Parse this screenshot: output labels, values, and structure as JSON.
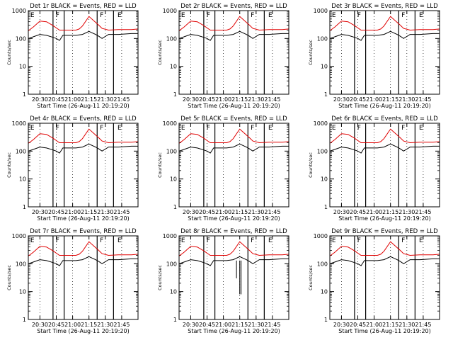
{
  "chart_data": [
    {
      "type": "line",
      "title": "Det 1r  BLACK = Events, RED = LLD",
      "xlabel": "Start Time (26-Aug-11 20:19:20)",
      "ylabel": "Counts/sec",
      "yscale": "log",
      "ylim": [
        1,
        1000
      ],
      "xlim": [
        20.3222,
        22.0
      ],
      "x_ticks": [
        "20:30",
        "20:45",
        "21:00",
        "21:15",
        "21:30",
        "21:45"
      ],
      "y_ticks": [
        "1",
        "10",
        "100",
        "1000"
      ],
      "markers": [
        "E",
        "F",
        "F",
        "E"
      ],
      "x": [
        20.3222,
        20.4,
        20.5,
        20.6,
        20.7,
        20.75,
        20.8,
        20.85,
        20.95,
        21.05,
        21.1,
        21.15,
        21.25,
        21.35,
        21.4,
        21.45,
        21.55,
        21.7,
        21.9,
        22.0
      ],
      "series": [
        {
          "name": "Events",
          "color": "#000000",
          "values": [
            100,
            115,
            140,
            130,
            110,
            100,
            85,
            130,
            130,
            130,
            135,
            140,
            180,
            140,
            120,
            100,
            140,
            140,
            150,
            150
          ]
        },
        {
          "name": "LLD",
          "color": "#e00000",
          "values": [
            190,
            260,
            420,
            400,
            290,
            240,
            200,
            200,
            200,
            200,
            220,
            280,
            620,
            380,
            300,
            230,
            200,
            210,
            210,
            220
          ]
        }
      ],
      "vlines": [
        20.7,
        20.87,
        21.375,
        21.625
      ]
    },
    {
      "type": "line",
      "title": "Det 2r  BLACK = Events, RED = LLD",
      "xlabel": "Start Time (26-Aug-11 20:19:20)",
      "ylabel": "Counts/sec",
      "yscale": "log",
      "ylim": [
        1,
        1000
      ],
      "xlim": [
        20.3222,
        22.0
      ],
      "x_ticks": [
        "20:30",
        "20:45",
        "21:00",
        "21:15",
        "21:30",
        "21:45"
      ],
      "y_ticks": [
        "1",
        "10",
        "100",
        "1000"
      ],
      "markers": [
        "E",
        "F",
        "F",
        "E"
      ],
      "x": [
        20.3222,
        20.4,
        20.5,
        20.6,
        20.7,
        20.75,
        20.8,
        20.85,
        20.95,
        21.05,
        21.1,
        21.15,
        21.25,
        21.35,
        21.4,
        21.45,
        21.55,
        21.7,
        21.9,
        22.0
      ],
      "series": [
        {
          "name": "Events",
          "color": "#000000",
          "values": [
            100,
            115,
            140,
            130,
            110,
            100,
            85,
            130,
            130,
            130,
            135,
            140,
            180,
            140,
            120,
            100,
            140,
            140,
            150,
            150
          ]
        },
        {
          "name": "LLD",
          "color": "#e00000",
          "values": [
            190,
            260,
            420,
            400,
            290,
            240,
            200,
            200,
            200,
            200,
            220,
            280,
            620,
            380,
            300,
            230,
            200,
            210,
            210,
            220
          ]
        }
      ],
      "vlines": [
        20.7,
        20.87,
        21.375,
        21.625
      ]
    },
    {
      "type": "line",
      "title": "Det 3r  BLACK = Events, RED = LLD",
      "xlabel": "Start Time (26-Aug-11 20:19:20)",
      "ylabel": "Counts/sec",
      "yscale": "log",
      "ylim": [
        1,
        1000
      ],
      "xlim": [
        20.3222,
        22.0
      ],
      "x_ticks": [
        "20:30",
        "20:45",
        "21:00",
        "21:15",
        "21:30",
        "21:45"
      ],
      "y_ticks": [
        "1",
        "10",
        "100",
        "1000"
      ],
      "markers": [
        "E",
        "F",
        "F",
        "E"
      ],
      "x": [
        20.3222,
        20.4,
        20.5,
        20.6,
        20.7,
        20.75,
        20.8,
        20.85,
        20.95,
        21.05,
        21.1,
        21.15,
        21.25,
        21.35,
        21.4,
        21.45,
        21.55,
        21.7,
        21.9,
        22.0
      ],
      "series": [
        {
          "name": "Events",
          "color": "#000000",
          "values": [
            100,
            115,
            140,
            130,
            110,
            100,
            85,
            130,
            130,
            130,
            135,
            140,
            180,
            140,
            120,
            100,
            140,
            140,
            150,
            150
          ]
        },
        {
          "name": "LLD",
          "color": "#e00000",
          "values": [
            190,
            260,
            420,
            400,
            290,
            240,
            200,
            200,
            200,
            200,
            220,
            280,
            620,
            380,
            300,
            230,
            200,
            210,
            210,
            220
          ]
        }
      ],
      "vlines": [
        20.7,
        20.87,
        21.375,
        21.625
      ]
    },
    {
      "type": "line",
      "title": "Det 4r  BLACK = Events, RED = LLD",
      "xlabel": "Start Time (26-Aug-11 20:19:20)",
      "ylabel": "Counts/sec",
      "yscale": "log",
      "ylim": [
        1,
        1000
      ],
      "xlim": [
        20.3222,
        22.0
      ],
      "x_ticks": [
        "20:30",
        "20:45",
        "21:00",
        "21:15",
        "21:30",
        "21:45"
      ],
      "y_ticks": [
        "1",
        "10",
        "100",
        "1000"
      ],
      "markers": [
        "E",
        "F",
        "F",
        "E"
      ],
      "x": [
        20.3222,
        20.4,
        20.5,
        20.6,
        20.7,
        20.75,
        20.8,
        20.85,
        20.95,
        21.05,
        21.1,
        21.15,
        21.25,
        21.35,
        21.4,
        21.45,
        21.55,
        21.7,
        21.9,
        22.0
      ],
      "series": [
        {
          "name": "Events",
          "color": "#000000",
          "values": [
            100,
            115,
            140,
            130,
            110,
            100,
            85,
            130,
            130,
            130,
            135,
            140,
            180,
            140,
            120,
            100,
            140,
            140,
            150,
            150
          ]
        },
        {
          "name": "LLD",
          "color": "#e00000",
          "values": [
            190,
            260,
            420,
            400,
            290,
            240,
            200,
            200,
            200,
            200,
            220,
            280,
            620,
            380,
            300,
            230,
            200,
            210,
            210,
            220
          ]
        }
      ],
      "vlines": [
        20.7,
        20.87,
        21.375,
        21.625
      ]
    },
    {
      "type": "line",
      "title": "Det 5r  BLACK = Events, RED = LLD",
      "xlabel": "Start Time (26-Aug-11 20:19:20)",
      "ylabel": "Counts/sec",
      "yscale": "log",
      "ylim": [
        1,
        1000
      ],
      "xlim": [
        20.3222,
        22.0
      ],
      "x_ticks": [
        "20:30",
        "20:45",
        "21:00",
        "21:15",
        "21:30",
        "21:45"
      ],
      "y_ticks": [
        "1",
        "10",
        "100",
        "1000"
      ],
      "markers": [
        "E",
        "F",
        "F",
        "E"
      ],
      "x": [
        20.3222,
        20.4,
        20.5,
        20.6,
        20.7,
        20.75,
        20.8,
        20.85,
        20.95,
        21.05,
        21.1,
        21.15,
        21.25,
        21.35,
        21.4,
        21.45,
        21.55,
        21.7,
        21.9,
        22.0
      ],
      "series": [
        {
          "name": "Events",
          "color": "#000000",
          "values": [
            100,
            115,
            140,
            130,
            110,
            100,
            85,
            130,
            130,
            130,
            135,
            140,
            180,
            140,
            120,
            100,
            140,
            140,
            150,
            150
          ]
        },
        {
          "name": "LLD",
          "color": "#e00000",
          "values": [
            190,
            260,
            420,
            400,
            290,
            240,
            200,
            200,
            200,
            200,
            220,
            280,
            620,
            380,
            300,
            230,
            200,
            210,
            210,
            220
          ]
        }
      ],
      "vlines": [
        20.7,
        20.87,
        21.375,
        21.625
      ]
    },
    {
      "type": "line",
      "title": "Det 6r  BLACK = Events, RED = LLD",
      "xlabel": "Start Time (26-Aug-11 20:19:20)",
      "ylabel": "Counts/sec",
      "yscale": "log",
      "ylim": [
        1,
        1000
      ],
      "xlim": [
        20.3222,
        22.0
      ],
      "x_ticks": [
        "20:30",
        "20:45",
        "21:00",
        "21:15",
        "21:30",
        "21:45"
      ],
      "y_ticks": [
        "1",
        "10",
        "100",
        "1000"
      ],
      "markers": [
        "E",
        "F",
        "F",
        "E"
      ],
      "x": [
        20.3222,
        20.4,
        20.5,
        20.6,
        20.7,
        20.75,
        20.8,
        20.85,
        20.95,
        21.05,
        21.1,
        21.15,
        21.25,
        21.35,
        21.4,
        21.45,
        21.55,
        21.7,
        21.9,
        22.0
      ],
      "series": [
        {
          "name": "Events",
          "color": "#000000",
          "values": [
            100,
            115,
            140,
            130,
            110,
            100,
            85,
            130,
            130,
            130,
            135,
            140,
            180,
            140,
            120,
            100,
            140,
            140,
            150,
            150
          ]
        },
        {
          "name": "LLD",
          "color": "#e00000",
          "values": [
            190,
            260,
            420,
            400,
            290,
            240,
            200,
            200,
            200,
            200,
            220,
            280,
            620,
            380,
            300,
            230,
            200,
            210,
            210,
            220
          ]
        }
      ],
      "vlines": [
        20.7,
        20.87,
        21.375,
        21.625
      ]
    },
    {
      "type": "line",
      "title": "Det 7r  BLACK = Events, RED = LLD",
      "xlabel": "Start Time (26-Aug-11 20:19:20)",
      "ylabel": "Counts/sec",
      "yscale": "log",
      "ylim": [
        1,
        1000
      ],
      "xlim": [
        20.3222,
        22.0
      ],
      "x_ticks": [
        "20:30",
        "20:45",
        "21:00",
        "21:15",
        "21:30",
        "21:45"
      ],
      "y_ticks": [
        "1",
        "10",
        "100",
        "1000"
      ],
      "markers": [
        "E",
        "F",
        "F",
        "E"
      ],
      "x": [
        20.3222,
        20.4,
        20.5,
        20.6,
        20.7,
        20.75,
        20.8,
        20.85,
        20.95,
        21.05,
        21.1,
        21.15,
        21.25,
        21.35,
        21.4,
        21.45,
        21.55,
        21.7,
        21.9,
        22.0
      ],
      "series": [
        {
          "name": "Events",
          "color": "#000000",
          "values": [
            100,
            115,
            140,
            130,
            110,
            100,
            85,
            130,
            130,
            130,
            135,
            140,
            180,
            140,
            120,
            100,
            140,
            140,
            150,
            150
          ]
        },
        {
          "name": "LLD",
          "color": "#e00000",
          "values": [
            190,
            260,
            420,
            400,
            290,
            240,
            200,
            200,
            200,
            200,
            220,
            280,
            620,
            380,
            300,
            230,
            200,
            210,
            210,
            220
          ]
        }
      ],
      "vlines": [
        20.7,
        20.87,
        21.375,
        21.625
      ]
    },
    {
      "type": "line",
      "title": "Det 8r  BLACK = Events, RED = LLD",
      "xlabel": "Start Time (26-Aug-11 20:19:20)",
      "ylabel": "Counts/sec",
      "yscale": "log",
      "ylim": [
        1,
        1000
      ],
      "xlim": [
        20.3222,
        22.0
      ],
      "x_ticks": [
        "20:30",
        "20:45",
        "21:00",
        "21:15",
        "21:30",
        "21:45"
      ],
      "y_ticks": [
        "1",
        "10",
        "100",
        "1000"
      ],
      "markers": [
        "E",
        "F",
        "F",
        "E"
      ],
      "x": [
        20.3222,
        20.4,
        20.5,
        20.6,
        20.7,
        20.75,
        20.8,
        20.85,
        20.95,
        21.05,
        21.1,
        21.15,
        21.25,
        21.35,
        21.4,
        21.45,
        21.55,
        21.7,
        21.9,
        22.0
      ],
      "series": [
        {
          "name": "Events",
          "color": "#000000",
          "values": [
            100,
            115,
            140,
            130,
            110,
            100,
            85,
            130,
            130,
            130,
            135,
            140,
            180,
            140,
            120,
            100,
            140,
            140,
            150,
            150
          ]
        },
        {
          "name": "LLD",
          "color": "#e00000",
          "values": [
            190,
            260,
            420,
            400,
            290,
            240,
            200,
            200,
            200,
            200,
            220,
            280,
            620,
            380,
            300,
            230,
            200,
            210,
            210,
            220
          ]
        }
      ],
      "vlines": [
        20.7,
        20.87,
        21.375,
        21.625
      ],
      "dips": [
        {
          "x": 21.2,
          "min": 30
        },
        {
          "x": 21.25,
          "min": 8
        },
        {
          "x": 21.27,
          "min": 8
        }
      ]
    },
    {
      "type": "line",
      "title": "Det 9r  BLACK = Events, RED = LLD",
      "xlabel": "Start Time (26-Aug-11 20:19:20)",
      "ylabel": "Counts/sec",
      "yscale": "log",
      "ylim": [
        1,
        1000
      ],
      "xlim": [
        20.3222,
        22.0
      ],
      "x_ticks": [
        "20:30",
        "20:45",
        "21:00",
        "21:15",
        "21:30",
        "21:45"
      ],
      "y_ticks": [
        "1",
        "10",
        "100",
        "1000"
      ],
      "markers": [
        "E",
        "F",
        "F",
        "E"
      ],
      "x": [
        20.3222,
        20.4,
        20.5,
        20.6,
        20.7,
        20.75,
        20.8,
        20.85,
        20.95,
        21.05,
        21.1,
        21.15,
        21.25,
        21.35,
        21.4,
        21.45,
        21.55,
        21.7,
        21.9,
        22.0
      ],
      "series": [
        {
          "name": "Events",
          "color": "#000000",
          "values": [
            100,
            115,
            140,
            130,
            110,
            100,
            85,
            130,
            130,
            130,
            135,
            140,
            180,
            140,
            120,
            100,
            140,
            140,
            150,
            150
          ]
        },
        {
          "name": "LLD",
          "color": "#e00000",
          "values": [
            190,
            260,
            420,
            400,
            290,
            240,
            200,
            200,
            200,
            200,
            220,
            280,
            620,
            380,
            300,
            230,
            200,
            210,
            210,
            220
          ]
        }
      ],
      "vlines": [
        20.7,
        20.87,
        21.375,
        21.625
      ]
    }
  ]
}
